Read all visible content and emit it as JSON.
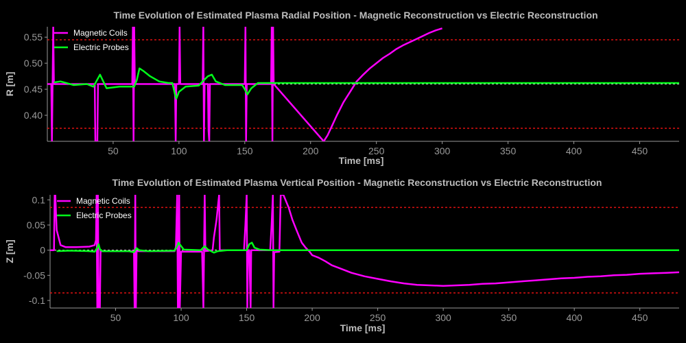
{
  "chart_data": [
    {
      "type": "line",
      "title": "Time Evolution of Estimated Plasma Radial Position - Magnetic Reconstruction vs Electric Reconstruction",
      "xlabel": "Time [ms]",
      "ylabel": "R [m]",
      "xlim": [
        0,
        480
      ],
      "ylim": [
        0.35,
        0.57
      ],
      "xticks": [
        50,
        100,
        150,
        200,
        250,
        300,
        350,
        400,
        450
      ],
      "yticks": [
        0.4,
        0.45,
        0.5,
        0.55
      ],
      "ytick_labels": [
        "0.40",
        "0.45",
        "0.50",
        "0.55"
      ],
      "reference_line": 0.46,
      "limit_lines": [
        0.545,
        0.375
      ],
      "legend": [
        "Magnetic Coils",
        "Electric Probes"
      ],
      "series": [
        {
          "name": "Magnetic Coils",
          "color": "#ff00ff",
          "points": [
            [
              0,
              0.46
            ],
            [
              3,
              0.46
            ],
            [
              3.5,
              0.35
            ],
            [
              4.5,
              0.57
            ],
            [
              5,
              0.46
            ],
            [
              36,
              0.46
            ],
            [
              36.5,
              0.35
            ],
            [
              38,
              0.35
            ],
            [
              38.5,
              0.46
            ],
            [
              40,
              0.46
            ],
            [
              64.5,
              0.46
            ],
            [
              65,
              0.57
            ],
            [
              65.5,
              0.35
            ],
            [
              66,
              0.57
            ],
            [
              66.5,
              0.46
            ],
            [
              97,
              0.46
            ],
            [
              97.5,
              0.35
            ],
            [
              98,
              0.46
            ],
            [
              100,
              0.46
            ],
            [
              100.5,
              0.57
            ],
            [
              101,
              0.46
            ],
            [
              118,
              0.46
            ],
            [
              118.5,
              0.57
            ],
            [
              119,
              0.35
            ],
            [
              119.5,
              0.46
            ],
            [
              122,
              0.46
            ],
            [
              122.5,
              0.37
            ],
            [
              123,
              0.35
            ],
            [
              123.5,
              0.46
            ],
            [
              150,
              0.46
            ],
            [
              150.5,
              0.57
            ],
            [
              151,
              0.35
            ],
            [
              151.5,
              0.46
            ],
            [
              170,
              0.46
            ],
            [
              170.5,
              0.57
            ],
            [
              171,
              0.35
            ],
            [
              171.5,
              0.57
            ],
            [
              172,
              0.46
            ],
            [
              210,
              0.35
            ],
            [
              213,
              0.362
            ],
            [
              216,
              0.378
            ],
            [
              220,
              0.4
            ],
            [
              225,
              0.425
            ],
            [
              230,
              0.445
            ],
            [
              235,
              0.465
            ],
            [
              240,
              0.478
            ],
            [
              245,
              0.49
            ],
            [
              250,
              0.5
            ],
            [
              255,
              0.51
            ],
            [
              260,
              0.518
            ],
            [
              265,
              0.527
            ],
            [
              270,
              0.534
            ],
            [
              275,
              0.54
            ],
            [
              280,
              0.546
            ],
            [
              285,
              0.552
            ],
            [
              290,
              0.558
            ],
            [
              295,
              0.563
            ],
            [
              300,
              0.567
            ]
          ]
        },
        {
          "name": "Electric Probes",
          "color": "#00ff1a",
          "points": [
            [
              5,
              0.463
            ],
            [
              10,
              0.465
            ],
            [
              20,
              0.458
            ],
            [
              30,
              0.46
            ],
            [
              35,
              0.455
            ],
            [
              40,
              0.478
            ],
            [
              45,
              0.452
            ],
            [
              55,
              0.455
            ],
            [
              62,
              0.455
            ],
            [
              66,
              0.455
            ],
            [
              68,
              0.468
            ],
            [
              70,
              0.49
            ],
            [
              73,
              0.485
            ],
            [
              78,
              0.475
            ],
            [
              85,
              0.465
            ],
            [
              92,
              0.462
            ],
            [
              95,
              0.462
            ],
            [
              97,
              0.44
            ],
            [
              98,
              0.432
            ],
            [
              100,
              0.445
            ],
            [
              105,
              0.455
            ],
            [
              115,
              0.457
            ],
            [
              118,
              0.465
            ],
            [
              122,
              0.475
            ],
            [
              125,
              0.478
            ],
            [
              128,
              0.465
            ],
            [
              135,
              0.458
            ],
            [
              148,
              0.458
            ],
            [
              150,
              0.45
            ],
            [
              152,
              0.44
            ],
            [
              155,
              0.452
            ],
            [
              160,
              0.462
            ],
            [
              170,
              0.462
            ],
            [
              172,
              0.462
            ],
            [
              480,
              0.462
            ]
          ]
        }
      ]
    },
    {
      "type": "line",
      "title": "Time Evolution of Estimated Plasma Vertical Position - Magnetic Reconstruction vs Electric Reconstruction",
      "xlabel": "Time [ms]",
      "ylabel": "Z [m]",
      "xlim": [
        0,
        480
      ],
      "ylim": [
        -0.115,
        0.11
      ],
      "xticks": [
        50,
        100,
        150,
        200,
        250,
        300,
        350,
        400,
        450
      ],
      "yticks": [
        -0.1,
        -0.05,
        0,
        0.05,
        0.1
      ],
      "ytick_labels": [
        "-0.1",
        "-0.05",
        "0",
        "0.05",
        "0.1"
      ],
      "reference_line": 0,
      "limit_lines": [
        0.085,
        -0.085
      ],
      "legend": [
        "Magnetic Coils",
        "Electric Probes"
      ],
      "series": [
        {
          "name": "Magnetic Coils",
          "color": "#ff00ff",
          "points": [
            [
              0,
              0.0
            ],
            [
              3,
              0.0
            ],
            [
              3.5,
              0.11
            ],
            [
              4,
              0.11
            ],
            [
              5,
              0.04
            ],
            [
              8,
              0.01
            ],
            [
              12,
              0.006
            ],
            [
              20,
              0.006
            ],
            [
              30,
              0.007
            ],
            [
              34,
              0.01
            ],
            [
              35,
              0.02
            ],
            [
              35.5,
              0.11
            ],
            [
              36,
              -0.115
            ],
            [
              36.5,
              0.11
            ],
            [
              37,
              -0.115
            ],
            [
              38,
              -0.115
            ],
            [
              38.5,
              -0.002
            ],
            [
              62,
              -0.002
            ],
            [
              64,
              -0.003
            ],
            [
              64.5,
              -0.115
            ],
            [
              65,
              0.11
            ],
            [
              65.5,
              -0.115
            ],
            [
              66,
              -0.002
            ],
            [
              95,
              -0.002
            ],
            [
              96,
              0.006
            ],
            [
              97,
              0.11
            ],
            [
              97.5,
              -0.115
            ],
            [
              98,
              -0.115
            ],
            [
              98.5,
              0.11
            ],
            [
              99,
              -0.115
            ],
            [
              100,
              -0.003
            ],
            [
              116,
              -0.003
            ],
            [
              117,
              -0.115
            ],
            [
              118,
              0.11
            ],
            [
              118.5,
              -0.002
            ],
            [
              124,
              0.0
            ],
            [
              125,
              0.025
            ],
            [
              127,
              0.06
            ],
            [
              129,
              0.11
            ],
            [
              129.5,
              0.0
            ],
            [
              148,
              0.0
            ],
            [
              149,
              0.05
            ],
            [
              150,
              0.11
            ],
            [
              150.5,
              -0.115
            ],
            [
              151,
              0.0
            ],
            [
              152,
              0.0
            ],
            [
              153,
              -0.115
            ],
            [
              153.5,
              0.0
            ],
            [
              168,
              0.0
            ],
            [
              169,
              0.05
            ],
            [
              170,
              0.11
            ],
            [
              170.5,
              -0.115
            ],
            [
              171,
              -0.004
            ],
            [
              175,
              -0.003
            ],
            [
              176,
              0.11
            ],
            [
              178,
              0.11
            ],
            [
              182,
              0.085
            ],
            [
              185,
              0.06
            ],
            [
              188,
              0.04
            ],
            [
              192,
              0.015
            ],
            [
              195,
              0.005
            ],
            [
              198,
              -0.003
            ],
            [
              200,
              -0.01
            ],
            [
              205,
              -0.015
            ],
            [
              210,
              -0.022
            ],
            [
              215,
              -0.03
            ],
            [
              220,
              -0.035
            ],
            [
              230,
              -0.045
            ],
            [
              240,
              -0.052
            ],
            [
              250,
              -0.057
            ],
            [
              260,
              -0.062
            ],
            [
              270,
              -0.066
            ],
            [
              280,
              -0.069
            ],
            [
              290,
              -0.07
            ],
            [
              300,
              -0.071
            ],
            [
              310,
              -0.07
            ],
            [
              320,
              -0.069
            ],
            [
              330,
              -0.067
            ],
            [
              340,
              -0.066
            ],
            [
              350,
              -0.064
            ],
            [
              360,
              -0.062
            ],
            [
              370,
              -0.06
            ],
            [
              380,
              -0.058
            ],
            [
              390,
              -0.056
            ],
            [
              400,
              -0.055
            ],
            [
              410,
              -0.053
            ],
            [
              420,
              -0.052
            ],
            [
              430,
              -0.05
            ],
            [
              440,
              -0.049
            ],
            [
              450,
              -0.047
            ],
            [
              460,
              -0.046
            ],
            [
              470,
              -0.045
            ],
            [
              480,
              -0.044
            ]
          ]
        },
        {
          "name": "Electric Probes",
          "color": "#00ff1a",
          "points": [
            [
              5,
              -0.002
            ],
            [
              15,
              -0.001
            ],
            [
              30,
              -0.002
            ],
            [
              34,
              -0.003
            ],
            [
              36,
              0.005
            ],
            [
              37,
              0.012
            ],
            [
              38,
              0.002
            ],
            [
              40,
              -0.002
            ],
            [
              60,
              -0.002
            ],
            [
              64,
              -0.004
            ],
            [
              66,
              0.004
            ],
            [
              68,
              0.0
            ],
            [
              75,
              -0.002
            ],
            [
              95,
              -0.001
            ],
            [
              97,
              0.008
            ],
            [
              98,
              0.015
            ],
            [
              100,
              0.008
            ],
            [
              102,
              0.001
            ],
            [
              115,
              0.0
            ],
            [
              118,
              0.008
            ],
            [
              120,
              0.002
            ],
            [
              125,
              -0.005
            ],
            [
              128,
              -0.002
            ],
            [
              135,
              0.0
            ],
            [
              150,
              0.0
            ],
            [
              152,
              0.012
            ],
            [
              154,
              0.015
            ],
            [
              156,
              0.005
            ],
            [
              160,
              0.001
            ],
            [
              170,
              0.0
            ],
            [
              480,
              0.0
            ]
          ]
        }
      ]
    }
  ]
}
